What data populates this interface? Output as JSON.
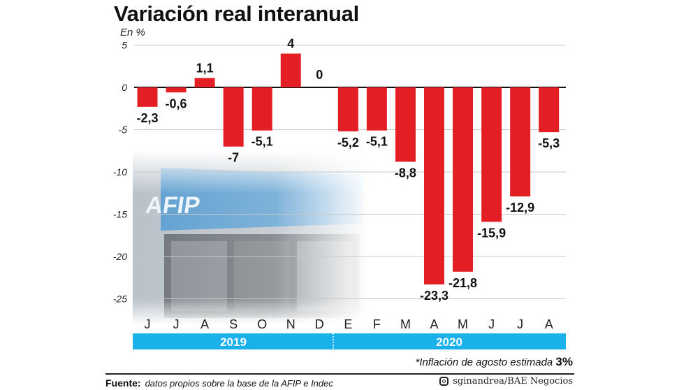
{
  "chart_data": {
    "type": "bar",
    "title": "Variación real interanual",
    "ylabel": "En %",
    "categories": [
      "J",
      "J",
      "A",
      "S",
      "O",
      "N",
      "D",
      "E",
      "F",
      "M",
      "A",
      "M",
      "J",
      "J",
      "A"
    ],
    "values": [
      -2.3,
      -0.6,
      1.1,
      -7,
      -5.1,
      4,
      0,
      -5.2,
      -5.1,
      -8.8,
      -23.3,
      -21.8,
      -15.9,
      -12.9,
      -5.3
    ],
    "data_labels": [
      "-2,3",
      "-0,6",
      "1,1",
      "-7",
      "-5,1",
      "4",
      "0",
      "-5,2",
      "-5,1",
      "-8,8",
      "-23,3",
      "-21,8",
      "-15,9",
      "-12,9",
      "-5,3"
    ],
    "years": [
      {
        "label": "2019",
        "span": [
          "J",
          "D"
        ]
      },
      {
        "label": "2020",
        "span": [
          "E",
          "A"
        ]
      }
    ],
    "ylim": [
      -27,
      5
    ],
    "yticks": [
      5,
      0,
      -5,
      -10,
      -15,
      -20,
      -25
    ],
    "ytick_labels": [
      "5",
      "0",
      "-5",
      "-10",
      "-15",
      "-20",
      "-25"
    ],
    "grid": true,
    "bar_color": "#e31e24",
    "year_band_color": "#1ab0ea",
    "footnote_text": "*Inflación de agosto estimada",
    "footnote_value": "3%"
  },
  "footer": {
    "source_label": "Fuente:",
    "source_text": "datos propios sobre la base de la AFIP e Indec",
    "credit": "sginandrea/BAE Negocios",
    "credit_icon": "instagram-icon"
  },
  "background_image": {
    "logo_text": "AFIP"
  }
}
